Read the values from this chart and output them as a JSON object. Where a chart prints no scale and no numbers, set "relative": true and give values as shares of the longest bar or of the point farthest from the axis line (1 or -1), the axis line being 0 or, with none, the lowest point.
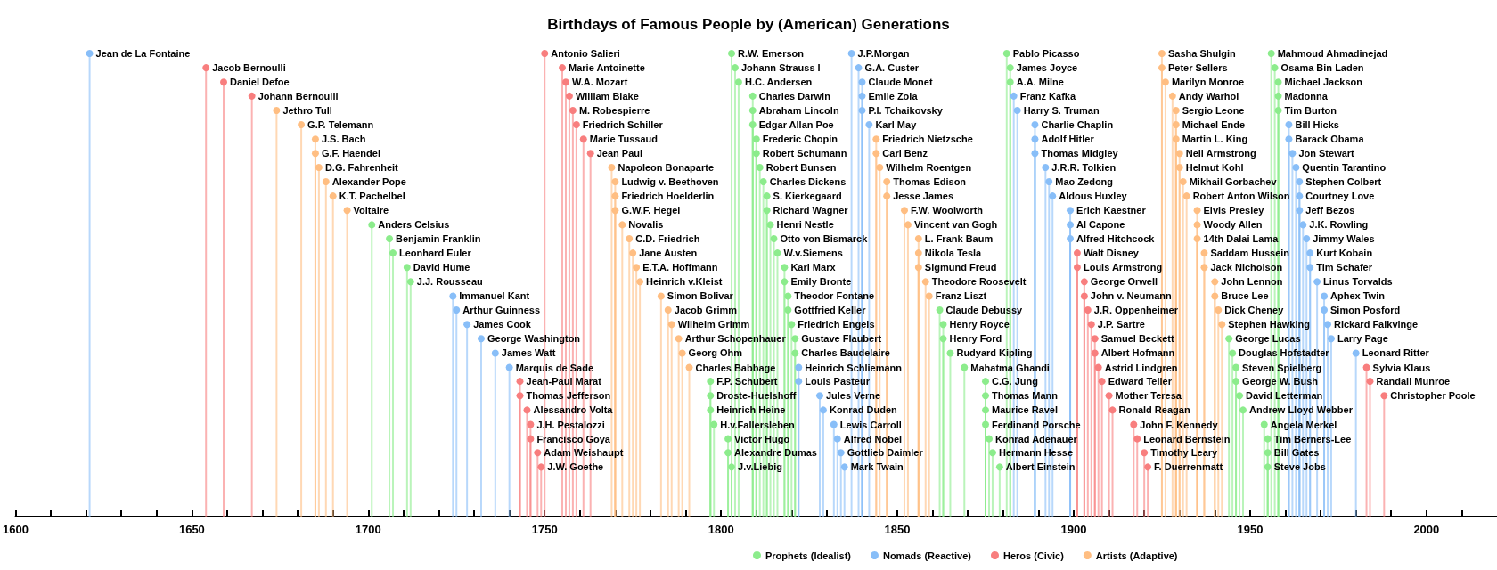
{
  "chart_data": {
    "type": "lollipop",
    "title": "Birthdays of Famous People by (American) Generations",
    "relative": true,
    "marker": "circle",
    "legend": "bottom",
    "xlim": [
      1600,
      2020
    ],
    "xticks": [
      1600,
      {
        "value": 1610,
        "label": null
      },
      {
        "value": 1620,
        "label": null
      },
      {
        "value": 1630,
        "label": null
      },
      {
        "value": 1640,
        "label": null
      },
      1650,
      {
        "value": 1660,
        "label": null
      },
      {
        "value": 1670,
        "label": null
      },
      {
        "value": 1680,
        "label": null
      },
      {
        "value": 1690,
        "label": null
      },
      1700,
      {
        "value": 1710,
        "label": null
      },
      {
        "value": 1720,
        "label": null
      },
      {
        "value": 1730,
        "label": null
      },
      {
        "value": 1740,
        "label": null
      },
      1750,
      {
        "value": 1760,
        "label": null
      },
      {
        "value": 1770,
        "label": null
      },
      {
        "value": 1780,
        "label": null
      },
      {
        "value": 1790,
        "label": null
      },
      1800,
      {
        "value": 1810,
        "label": null
      },
      {
        "value": 1820,
        "label": null
      },
      {
        "value": 1830,
        "label": null
      },
      {
        "value": 1840,
        "label": null
      },
      1850,
      {
        "value": 1860,
        "label": null
      },
      {
        "value": 1870,
        "label": null
      },
      {
        "value": 1880,
        "label": null
      },
      {
        "value": 1890,
        "label": null
      },
      1900,
      {
        "value": 1910,
        "label": null
      },
      {
        "value": 1920,
        "label": null
      },
      {
        "value": 1930,
        "label": null
      },
      {
        "value": 1940,
        "label": null
      },
      1950,
      {
        "value": 1960,
        "label": null
      },
      {
        "value": 1970,
        "label": null
      },
      {
        "value": 1980,
        "label": null
      },
      {
        "value": 1990,
        "label": null
      },
      2000,
      {
        "value": 2010,
        "label": null
      }
    ],
    "series": [
      {
        "name": "Prophets (Idealist)",
        "color": "#8cec8c",
        "x": [
          1701,
          1706,
          1707,
          1711,
          1712,
          1797,
          1797,
          1797,
          1798,
          1802,
          1802,
          1803,
          1803,
          1804,
          1805,
          1809,
          1809,
          1809,
          1810,
          1810,
          1811,
          1812,
          1813,
          1813,
          1814,
          1815,
          1816,
          1818,
          1818,
          1819,
          1819,
          1820,
          1821,
          1821,
          1862,
          1863,
          1863,
          1865,
          1869,
          1875,
          1875,
          1875,
          1875,
          1876,
          1877,
          1879,
          1881,
          1882,
          1882,
          1944,
          1945,
          1946,
          1946,
          1947,
          1948,
          1954,
          1955,
          1955,
          1955,
          1956,
          1957,
          1958,
          1958,
          1958
        ],
        "values": [
          0.63,
          0.6,
          0.569,
          0.538,
          0.507,
          0.292,
          0.261,
          0.23,
          0.199,
          0.168,
          0.138,
          0.107,
          1,
          0.969,
          0.938,
          0.908,
          0.877,
          0.846,
          0.815,
          0.784,
          0.754,
          0.723,
          0.692,
          0.661,
          0.63,
          0.6,
          0.569,
          0.538,
          0.507,
          0.476,
          0.446,
          0.415,
          0.384,
          0.353,
          0.446,
          0.415,
          0.384,
          0.353,
          0.322,
          0.292,
          0.261,
          0.23,
          0.199,
          0.168,
          0.138,
          0.107,
          1,
          0.969,
          0.938,
          0.384,
          0.353,
          0.322,
          0.292,
          0.261,
          0.23,
          0.199,
          0.168,
          0.138,
          0.107,
          1,
          0.969,
          0.938,
          0.908,
          0.877
        ]
      },
      {
        "name": "Nomads (Reactive)",
        "color": "#88bef8",
        "x": [
          1621,
          1724,
          1725,
          1728,
          1732,
          1736,
          1740,
          1822,
          1822,
          1828,
          1829,
          1832,
          1833,
          1834,
          1835,
          1837,
          1839,
          1840,
          1840,
          1840,
          1842,
          1883,
          1884,
          1889,
          1889,
          1889,
          1892,
          1893,
          1894,
          1899,
          1899,
          1899,
          1961,
          1961,
          1962,
          1963,
          1964,
          1964,
          1964,
          1965,
          1966,
          1967,
          1967,
          1969,
          1971,
          1971,
          1972,
          1973,
          1980
        ],
        "values": [
          1,
          0.476,
          0.446,
          0.415,
          0.384,
          0.353,
          0.322,
          0.322,
          0.292,
          0.261,
          0.23,
          0.199,
          0.168,
          0.138,
          0.107,
          1,
          0.969,
          0.938,
          0.908,
          0.877,
          0.846,
          0.908,
          0.877,
          0.846,
          0.815,
          0.784,
          0.754,
          0.723,
          0.692,
          0.661,
          0.63,
          0.6,
          0.846,
          0.815,
          0.784,
          0.754,
          0.723,
          0.692,
          0.661,
          0.63,
          0.6,
          0.569,
          0.538,
          0.507,
          0.476,
          0.446,
          0.415,
          0.384,
          0.353
        ]
      },
      {
        "name": "Heros (Civic)",
        "color": "#f87e7e",
        "x": [
          1654,
          1659,
          1667,
          1743,
          1743,
          1745,
          1746,
          1746,
          1748,
          1749,
          1750,
          1755,
          1756,
          1757,
          1758,
          1759,
          1761,
          1763,
          1901,
          1901,
          1903,
          1903,
          1904,
          1905,
          1906,
          1906,
          1907,
          1908,
          1910,
          1911,
          1917,
          1918,
          1920,
          1921,
          1983,
          1984,
          1988
        ],
        "values": [
          0.969,
          0.938,
          0.908,
          0.292,
          0.261,
          0.23,
          0.199,
          0.168,
          0.138,
          0.107,
          1,
          0.969,
          0.938,
          0.908,
          0.877,
          0.846,
          0.815,
          0.784,
          0.569,
          0.538,
          0.507,
          0.476,
          0.446,
          0.415,
          0.384,
          0.353,
          0.322,
          0.292,
          0.261,
          0.23,
          0.199,
          0.168,
          0.138,
          0.107,
          0.322,
          0.292,
          0.261
        ]
      },
      {
        "name": "Artists (Adaptive)",
        "color": "#ffbe82",
        "x": [
          1674,
          1681,
          1685,
          1685,
          1686,
          1688,
          1690,
          1694,
          1769,
          1770,
          1770,
          1770,
          1772,
          1774,
          1775,
          1776,
          1777,
          1783,
          1785,
          1786,
          1788,
          1789,
          1791,
          1844,
          1844,
          1845,
          1847,
          1847,
          1852,
          1853,
          1856,
          1856,
          1856,
          1858,
          1859,
          1925,
          1925,
          1926,
          1928,
          1929,
          1929,
          1929,
          1930,
          1930,
          1931,
          1932,
          1935,
          1935,
          1935,
          1937,
          1937,
          1940,
          1940,
          1941,
          1942
        ],
        "values": [
          0.877,
          0.846,
          0.815,
          0.784,
          0.754,
          0.723,
          0.692,
          0.661,
          0.754,
          0.723,
          0.692,
          0.661,
          0.63,
          0.6,
          0.569,
          0.538,
          0.507,
          0.476,
          0.446,
          0.415,
          0.384,
          0.353,
          0.322,
          0.815,
          0.784,
          0.754,
          0.723,
          0.692,
          0.661,
          0.63,
          0.6,
          0.569,
          0.538,
          0.507,
          0.476,
          1,
          0.969,
          0.938,
          0.908,
          0.877,
          0.846,
          0.815,
          0.784,
          0.754,
          0.723,
          0.692,
          0.661,
          0.63,
          0.6,
          0.569,
          0.538,
          0.507,
          0.476,
          0.446,
          0.415
        ]
      }
    ],
    "annotations": [
      {
        "text": "Anders Celsius",
        "x": 1701,
        "y": 0.63
      },
      {
        "text": "Benjamin Franklin",
        "x": 1706,
        "y": 0.6
      },
      {
        "text": "Leonhard Euler",
        "x": 1707,
        "y": 0.569
      },
      {
        "text": "David Hume",
        "x": 1711,
        "y": 0.538
      },
      {
        "text": "J.J. Rousseau",
        "x": 1712,
        "y": 0.507
      },
      {
        "text": "F.P. Schubert",
        "x": 1797,
        "y": 0.292
      },
      {
        "text": "Droste-Huelshoff",
        "x": 1797,
        "y": 0.261
      },
      {
        "text": "Heinrich Heine",
        "x": 1797,
        "y": 0.23
      },
      {
        "text": "H.v.Fallersleben",
        "x": 1798,
        "y": 0.199
      },
      {
        "text": "Victor Hugo",
        "x": 1802,
        "y": 0.168
      },
      {
        "text": "Alexandre Dumas",
        "x": 1802,
        "y": 0.138
      },
      {
        "text": "J.v.Liebig",
        "x": 1803,
        "y": 0.107
      },
      {
        "text": "R.W. Emerson",
        "x": 1803,
        "y": 1
      },
      {
        "text": "Johann Strauss I",
        "x": 1804,
        "y": 0.969
      },
      {
        "text": "H.C. Andersen",
        "x": 1805,
        "y": 0.938
      },
      {
        "text": "Charles Darwin",
        "x": 1809,
        "y": 0.908
      },
      {
        "text": "Abraham Lincoln",
        "x": 1809,
        "y": 0.877
      },
      {
        "text": "Edgar Allan Poe",
        "x": 1809,
        "y": 0.846
      },
      {
        "text": "Frederic Chopin",
        "x": 1810,
        "y": 0.815
      },
      {
        "text": "Robert Schumann",
        "x": 1810,
        "y": 0.784
      },
      {
        "text": "Robert Bunsen",
        "x": 1811,
        "y": 0.754
      },
      {
        "text": "Charles Dickens",
        "x": 1812,
        "y": 0.723
      },
      {
        "text": "S. Kierkegaard",
        "x": 1813,
        "y": 0.692
      },
      {
        "text": "Richard Wagner",
        "x": 1813,
        "y": 0.661
      },
      {
        "text": "Henri Nestle",
        "x": 1814,
        "y": 0.63
      },
      {
        "text": "Otto von Bismarck",
        "x": 1815,
        "y": 0.6
      },
      {
        "text": "W.v.Siemens",
        "x": 1816,
        "y": 0.569
      },
      {
        "text": "Karl Marx",
        "x": 1818,
        "y": 0.538
      },
      {
        "text": "Emily Bronte",
        "x": 1818,
        "y": 0.507
      },
      {
        "text": "Theodor Fontane",
        "x": 1819,
        "y": 0.476
      },
      {
        "text": "Gottfried Keller",
        "x": 1819,
        "y": 0.446
      },
      {
        "text": "Friedrich Engels",
        "x": 1820,
        "y": 0.415
      },
      {
        "text": "Gustave Flaubert",
        "x": 1821,
        "y": 0.384
      },
      {
        "text": "Charles Baudelaire",
        "x": 1821,
        "y": 0.353
      },
      {
        "text": "Claude Debussy",
        "x": 1862,
        "y": 0.446
      },
      {
        "text": "Henry Royce",
        "x": 1863,
        "y": 0.415
      },
      {
        "text": "Henry Ford",
        "x": 1863,
        "y": 0.384
      },
      {
        "text": "Rudyard Kipling",
        "x": 1865,
        "y": 0.353
      },
      {
        "text": "Mahatma Ghandi",
        "x": 1869,
        "y": 0.322
      },
      {
        "text": "C.G. Jung",
        "x": 1875,
        "y": 0.292
      },
      {
        "text": "Thomas Mann",
        "x": 1875,
        "y": 0.261
      },
      {
        "text": "Maurice Ravel",
        "x": 1875,
        "y": 0.23
      },
      {
        "text": "Ferdinand Porsche",
        "x": 1875,
        "y": 0.199
      },
      {
        "text": "Konrad Adenauer",
        "x": 1876,
        "y": 0.168
      },
      {
        "text": "Hermann Hesse",
        "x": 1877,
        "y": 0.138
      },
      {
        "text": "Albert Einstein",
        "x": 1879,
        "y": 0.107
      },
      {
        "text": "Pablo Picasso",
        "x": 1881,
        "y": 1
      },
      {
        "text": "James Joyce",
        "x": 1882,
        "y": 0.969
      },
      {
        "text": "A.A. Milne",
        "x": 1882,
        "y": 0.938
      },
      {
        "text": "George Lucas",
        "x": 1944,
        "y": 0.384
      },
      {
        "text": "Douglas Hofstadter",
        "x": 1945,
        "y": 0.353
      },
      {
        "text": "Steven Spielberg",
        "x": 1946,
        "y": 0.322
      },
      {
        "text": "George W. Bush",
        "x": 1946,
        "y": 0.292
      },
      {
        "text": "David Letterman",
        "x": 1947,
        "y": 0.261
      },
      {
        "text": "Andrew Lloyd Webber",
        "x": 1948,
        "y": 0.23
      },
      {
        "text": "Angela Merkel",
        "x": 1954,
        "y": 0.199
      },
      {
        "text": "Tim Berners-Lee",
        "x": 1955,
        "y": 0.168
      },
      {
        "text": "Bill Gates",
        "x": 1955,
        "y": 0.138
      },
      {
        "text": "Steve Jobs",
        "x": 1955,
        "y": 0.107
      },
      {
        "text": "Mahmoud Ahmadinejad",
        "x": 1956,
        "y": 1
      },
      {
        "text": "Osama Bin Laden",
        "x": 1957,
        "y": 0.969
      },
      {
        "text": "Michael Jackson",
        "x": 1958,
        "y": 0.938
      },
      {
        "text": "Madonna",
        "x": 1958,
        "y": 0.908
      },
      {
        "text": "Tim Burton",
        "x": 1958,
        "y": 0.877
      },
      {
        "text": "Jean de La Fontaine",
        "x": 1621,
        "y": 1
      },
      {
        "text": "Immanuel Kant",
        "x": 1724,
        "y": 0.476
      },
      {
        "text": "Arthur Guinness",
        "x": 1725,
        "y": 0.446
      },
      {
        "text": "James Cook",
        "x": 1728,
        "y": 0.415
      },
      {
        "text": "George Washington",
        "x": 1732,
        "y": 0.384
      },
      {
        "text": "James Watt",
        "x": 1736,
        "y": 0.353
      },
      {
        "text": "Marquis de Sade",
        "x": 1740,
        "y": 0.322
      },
      {
        "text": "Heinrich Schliemann",
        "x": 1822,
        "y": 0.322
      },
      {
        "text": "Louis Pasteur",
        "x": 1822,
        "y": 0.292
      },
      {
        "text": "Jules Verne",
        "x": 1828,
        "y": 0.261
      },
      {
        "text": "Konrad Duden",
        "x": 1829,
        "y": 0.23
      },
      {
        "text": "Lewis Carroll",
        "x": 1832,
        "y": 0.199
      },
      {
        "text": "Alfred Nobel",
        "x": 1833,
        "y": 0.168
      },
      {
        "text": "Gottlieb Daimler",
        "x": 1834,
        "y": 0.138
      },
      {
        "text": "Mark Twain",
        "x": 1835,
        "y": 0.107
      },
      {
        "text": "J.P.Morgan",
        "x": 1837,
        "y": 1
      },
      {
        "text": "G.A. Custer",
        "x": 1839,
        "y": 0.969
      },
      {
        "text": "Claude Monet",
        "x": 1840,
        "y": 0.938
      },
      {
        "text": "Emile Zola",
        "x": 1840,
        "y": 0.908
      },
      {
        "text": "P.I. Tchaikovsky",
        "x": 1840,
        "y": 0.877
      },
      {
        "text": "Karl May",
        "x": 1842,
        "y": 0.846
      },
      {
        "text": "Franz Kafka",
        "x": 1883,
        "y": 0.908
      },
      {
        "text": "Harry S. Truman",
        "x": 1884,
        "y": 0.877
      },
      {
        "text": "Charlie Chaplin",
        "x": 1889,
        "y": 0.846
      },
      {
        "text": "Adolf Hitler",
        "x": 1889,
        "y": 0.815
      },
      {
        "text": "Thomas Midgley",
        "x": 1889,
        "y": 0.784
      },
      {
        "text": "J.R.R. Tolkien",
        "x": 1892,
        "y": 0.754
      },
      {
        "text": "Mao Zedong",
        "x": 1893,
        "y": 0.723
      },
      {
        "text": "Aldous Huxley",
        "x": 1894,
        "y": 0.692
      },
      {
        "text": "Erich Kaestner",
        "x": 1899,
        "y": 0.661
      },
      {
        "text": "Al Capone",
        "x": 1899,
        "y": 0.63
      },
      {
        "text": "Alfred Hitchcock",
        "x": 1899,
        "y": 0.6
      },
      {
        "text": "Bill Hicks",
        "x": 1961,
        "y": 0.846
      },
      {
        "text": "Barack Obama",
        "x": 1961,
        "y": 0.815
      },
      {
        "text": "Jon Stewart",
        "x": 1962,
        "y": 0.784
      },
      {
        "text": "Quentin Tarantino",
        "x": 1963,
        "y": 0.754
      },
      {
        "text": "Stephen Colbert",
        "x": 1964,
        "y": 0.723
      },
      {
        "text": "Courtney Love",
        "x": 1964,
        "y": 0.692
      },
      {
        "text": "Jeff Bezos",
        "x": 1964,
        "y": 0.661
      },
      {
        "text": "J.K. Rowling",
        "x": 1965,
        "y": 0.63
      },
      {
        "text": "Jimmy Wales",
        "x": 1966,
        "y": 0.6
      },
      {
        "text": "Kurt Kobain",
        "x": 1967,
        "y": 0.569
      },
      {
        "text": "Tim Schafer",
        "x": 1967,
        "y": 0.538
      },
      {
        "text": "Linus Torvalds",
        "x": 1969,
        "y": 0.507
      },
      {
        "text": "Aphex Twin",
        "x": 1971,
        "y": 0.476
      },
      {
        "text": "Simon Posford",
        "x": 1971,
        "y": 0.446
      },
      {
        "text": "Rickard Falkvinge",
        "x": 1972,
        "y": 0.415
      },
      {
        "text": "Larry Page",
        "x": 1973,
        "y": 0.384
      },
      {
        "text": "Leonard Ritter",
        "x": 1980,
        "y": 0.353
      },
      {
        "text": "Jacob Bernoulli",
        "x": 1654,
        "y": 0.969
      },
      {
        "text": "Daniel Defoe",
        "x": 1659,
        "y": 0.938
      },
      {
        "text": "Johann Bernoulli",
        "x": 1667,
        "y": 0.908
      },
      {
        "text": "Jean-Paul Marat",
        "x": 1743,
        "y": 0.292
      },
      {
        "text": "Thomas Jefferson",
        "x": 1743,
        "y": 0.261
      },
      {
        "text": "Alessandro Volta",
        "x": 1745,
        "y": 0.23
      },
      {
        "text": "J.H. Pestalozzi",
        "x": 1746,
        "y": 0.199
      },
      {
        "text": "Francisco Goya",
        "x": 1746,
        "y": 0.168
      },
      {
        "text": "Adam Weishaupt",
        "x": 1748,
        "y": 0.138
      },
      {
        "text": "J.W. Goethe",
        "x": 1749,
        "y": 0.107
      },
      {
        "text": "Antonio Salieri",
        "x": 1750,
        "y": 1
      },
      {
        "text": "Marie Antoinette",
        "x": 1755,
        "y": 0.969
      },
      {
        "text": "W.A. Mozart",
        "x": 1756,
        "y": 0.938
      },
      {
        "text": "William Blake",
        "x": 1757,
        "y": 0.908
      },
      {
        "text": "M. Robespierre",
        "x": 1758,
        "y": 0.877
      },
      {
        "text": "Friedrich Schiller",
        "x": 1759,
        "y": 0.846
      },
      {
        "text": "Marie Tussaud",
        "x": 1761,
        "y": 0.815
      },
      {
        "text": "Jean Paul",
        "x": 1763,
        "y": 0.784
      },
      {
        "text": "Walt Disney",
        "x": 1901,
        "y": 0.569
      },
      {
        "text": "Louis Armstrong",
        "x": 1901,
        "y": 0.538
      },
      {
        "text": "George Orwell",
        "x": 1903,
        "y": 0.507
      },
      {
        "text": "John v. Neumann",
        "x": 1903,
        "y": 0.476
      },
      {
        "text": "J.R. Oppenheimer",
        "x": 1904,
        "y": 0.446
      },
      {
        "text": "J.P. Sartre",
        "x": 1905,
        "y": 0.415
      },
      {
        "text": "Samuel Beckett",
        "x": 1906,
        "y": 0.384
      },
      {
        "text": "Albert Hofmann",
        "x": 1906,
        "y": 0.353
      },
      {
        "text": "Astrid Lindgren",
        "x": 1907,
        "y": 0.322
      },
      {
        "text": "Edward Teller",
        "x": 1908,
        "y": 0.292
      },
      {
        "text": "Mother Teresa",
        "x": 1910,
        "y": 0.261
      },
      {
        "text": "Ronald Reagan",
        "x": 1911,
        "y": 0.23
      },
      {
        "text": "John F. Kennedy",
        "x": 1917,
        "y": 0.199
      },
      {
        "text": "Leonard Bernstein",
        "x": 1918,
        "y": 0.168
      },
      {
        "text": "Timothy Leary",
        "x": 1920,
        "y": 0.138
      },
      {
        "text": "F. Duerrenmatt",
        "x": 1921,
        "y": 0.107
      },
      {
        "text": "Sylvia Klaus",
        "x": 1983,
        "y": 0.322
      },
      {
        "text": "Randall Munroe",
        "x": 1984,
        "y": 0.292
      },
      {
        "text": "Christopher Poole",
        "x": 1988,
        "y": 0.261
      },
      {
        "text": "Jethro Tull",
        "x": 1674,
        "y": 0.877
      },
      {
        "text": "G.P. Telemann",
        "x": 1681,
        "y": 0.846
      },
      {
        "text": "J.S. Bach",
        "x": 1685,
        "y": 0.815
      },
      {
        "text": "G.F. Haendel",
        "x": 1685,
        "y": 0.784
      },
      {
        "text": "D.G. Fahrenheit",
        "x": 1686,
        "y": 0.754
      },
      {
        "text": "Alexander Pope",
        "x": 1688,
        "y": 0.723
      },
      {
        "text": "K.T. Pachelbel",
        "x": 1690,
        "y": 0.692
      },
      {
        "text": "Voltaire",
        "x": 1694,
        "y": 0.661
      },
      {
        "text": "Napoleon Bonaparte",
        "x": 1769,
        "y": 0.754
      },
      {
        "text": "Ludwig v. Beethoven",
        "x": 1770,
        "y": 0.723
      },
      {
        "text": "Friedrich Hoelderlin",
        "x": 1770,
        "y": 0.692
      },
      {
        "text": "G.W.F. Hegel",
        "x": 1770,
        "y": 0.661
      },
      {
        "text": "Novalis",
        "x": 1772,
        "y": 0.63
      },
      {
        "text": "C.D. Friedrich",
        "x": 1774,
        "y": 0.6
      },
      {
        "text": "Jane Austen",
        "x": 1775,
        "y": 0.569
      },
      {
        "text": "E.T.A. Hoffmann",
        "x": 1776,
        "y": 0.538
      },
      {
        "text": "Heinrich v.Kleist",
        "x": 1777,
        "y": 0.507
      },
      {
        "text": "Simon Bolivar",
        "x": 1783,
        "y": 0.476
      },
      {
        "text": "Jacob Grimm",
        "x": 1785,
        "y": 0.446
      },
      {
        "text": "Wilhelm Grimm",
        "x": 1786,
        "y": 0.415
      },
      {
        "text": "Arthur Schopenhauer",
        "x": 1788,
        "y": 0.384
      },
      {
        "text": "Georg Ohm",
        "x": 1789,
        "y": 0.353
      },
      {
        "text": "Charles Babbage",
        "x": 1791,
        "y": 0.322
      },
      {
        "text": "Friedrich Nietzsche",
        "x": 1844,
        "y": 0.815
      },
      {
        "text": "Carl Benz",
        "x": 1844,
        "y": 0.784
      },
      {
        "text": "Wilhelm Roentgen",
        "x": 1845,
        "y": 0.754
      },
      {
        "text": "Thomas Edison",
        "x": 1847,
        "y": 0.723
      },
      {
        "text": "Jesse James",
        "x": 1847,
        "y": 0.692
      },
      {
        "text": "F.W. Woolworth",
        "x": 1852,
        "y": 0.661
      },
      {
        "text": "Vincent van Gogh",
        "x": 1853,
        "y": 0.63
      },
      {
        "text": "L. Frank Baum",
        "x": 1856,
        "y": 0.6
      },
      {
        "text": "Nikola Tesla",
        "x": 1856,
        "y": 0.569
      },
      {
        "text": "Sigmund Freud",
        "x": 1856,
        "y": 0.538
      },
      {
        "text": "Theodore Roosevelt",
        "x": 1858,
        "y": 0.507
      },
      {
        "text": "Franz Liszt",
        "x": 1859,
        "y": 0.476
      },
      {
        "text": "Sasha Shulgin",
        "x": 1925,
        "y": 1
      },
      {
        "text": "Peter Sellers",
        "x": 1925,
        "y": 0.969
      },
      {
        "text": "Marilyn Monroe",
        "x": 1926,
        "y": 0.938
      },
      {
        "text": "Andy Warhol",
        "x": 1928,
        "y": 0.908
      },
      {
        "text": "Sergio Leone",
        "x": 1929,
        "y": 0.877
      },
      {
        "text": "Michael Ende",
        "x": 1929,
        "y": 0.846
      },
      {
        "text": "Martin L. King",
        "x": 1929,
        "y": 0.815
      },
      {
        "text": "Neil Armstrong",
        "x": 1930,
        "y": 0.784
      },
      {
        "text": "Helmut Kohl",
        "x": 1930,
        "y": 0.754
      },
      {
        "text": "Mikhail Gorbachev",
        "x": 1931,
        "y": 0.723
      },
      {
        "text": "Robert Anton Wilson",
        "x": 1932,
        "y": 0.692
      },
      {
        "text": "Elvis Presley",
        "x": 1935,
        "y": 0.661
      },
      {
        "text": "Woody Allen",
        "x": 1935,
        "y": 0.63
      },
      {
        "text": "14th Dalai Lama",
        "x": 1935,
        "y": 0.6
      },
      {
        "text": "Saddam Hussein",
        "x": 1937,
        "y": 0.569
      },
      {
        "text": "Jack Nicholson",
        "x": 1937,
        "y": 0.538
      },
      {
        "text": "John Lennon",
        "x": 1940,
        "y": 0.507
      },
      {
        "text": "Bruce Lee",
        "x": 1940,
        "y": 0.476
      },
      {
        "text": "Dick Cheney",
        "x": 1941,
        "y": 0.446
      },
      {
        "text": "Stephen Hawking",
        "x": 1942,
        "y": 0.415
      }
    ]
  }
}
